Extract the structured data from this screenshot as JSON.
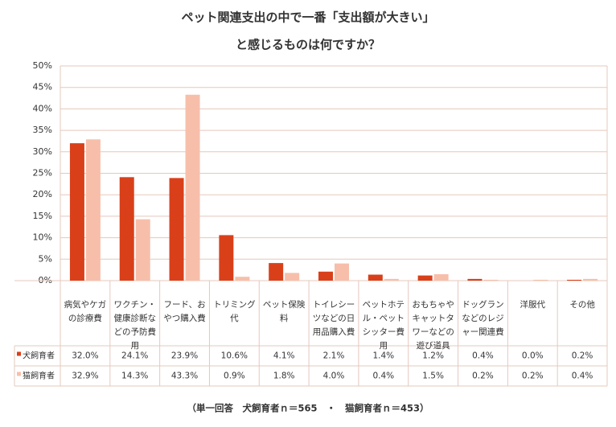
{
  "chart_data": {
    "type": "bar",
    "title": "ペット関連支出の中で一番「支出額が大きい」",
    "subtitle": "と感じるものは何ですか？",
    "note": "（単一回答　犬飼育者ｎ＝565　・　猫飼育者ｎ＝453）",
    "categories": [
      "病気やケガの診療費",
      "ワクチン・健康診断などの予防費用",
      "フード、おやつ購入費",
      "トリミング代",
      "ペット保険料",
      "トイレシーツなどの日用品購入費",
      "ペットホテル・ペットシッター費用",
      "おもちゃやキャットタワーなどの遊び道具",
      "ドッグランなどのレジャー関連費",
      "洋服代",
      "その他"
    ],
    "series": [
      {
        "name": "犬飼育者",
        "color": "#d9401a",
        "values": [
          32.0,
          24.1,
          23.9,
          10.6,
          4.1,
          2.1,
          1.4,
          1.2,
          0.4,
          0.0,
          0.2
        ],
        "value_labels": [
          "32.0%",
          "24.1%",
          "23.9%",
          "10.6%",
          "4.1%",
          "2.1%",
          "1.4%",
          "1.2%",
          "0.4%",
          "0.0%",
          "0.2%"
        ]
      },
      {
        "name": "猫飼育者",
        "color": "#f7bfaa",
        "values": [
          32.9,
          14.3,
          43.3,
          0.9,
          1.8,
          4.0,
          0.4,
          1.5,
          0.2,
          0.2,
          0.4
        ],
        "value_labels": [
          "32.9%",
          "14.3%",
          "43.3%",
          "0.9%",
          "1.8%",
          "4.0%",
          "0.4%",
          "1.5%",
          "0.2%",
          "0.2%",
          "0.4%"
        ]
      }
    ],
    "ylim": [
      0,
      50
    ],
    "yticks": [
      {
        "value": 0,
        "label": "0%"
      },
      {
        "value": 5,
        "label": "5%"
      },
      {
        "value": 10,
        "label": "10%"
      },
      {
        "value": 15,
        "label": "15%"
      },
      {
        "value": 20,
        "label": "20%"
      },
      {
        "value": 25,
        "label": "25%"
      },
      {
        "value": 30,
        "label": "30%"
      },
      {
        "value": 35,
        "label": "35%"
      },
      {
        "value": 40,
        "label": "40%"
      },
      {
        "value": 45,
        "label": "45%"
      },
      {
        "value": 50,
        "label": "50%"
      }
    ],
    "grid": true
  }
}
